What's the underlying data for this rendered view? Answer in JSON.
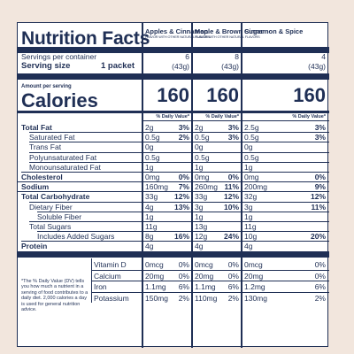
{
  "panel": {
    "title": "Nutrition Facts",
    "servings_label": "Servings per container",
    "serving_size_label": "Serving size",
    "serving_size_value": "1 packet",
    "amount_per_serving": "Amount per serving",
    "calories_label": "Calories",
    "dv_header": "% Daily Value*",
    "footnote": "*The % Daily Value (DV) tells you how much a nutrient in a serving of food contributes to a daily diet. 2,000 calories a day is used for general nutrition advice."
  },
  "columns": [
    {
      "name": "Apples & Cinnamon",
      "sub": "FLAVOR WITH OTHER NATURAL FLAVORS",
      "servings": "6",
      "size": "(43g)",
      "calories": "160",
      "rows": [
        [
          "2g",
          "3%"
        ],
        [
          "0.5g",
          "2%"
        ],
        [
          "0g",
          ""
        ],
        [
          "0.5g",
          ""
        ],
        [
          "1g",
          ""
        ],
        [
          "0mg",
          "0%"
        ],
        [
          "160mg",
          "7%"
        ],
        [
          "33g",
          "12%"
        ],
        [
          "4g",
          "13%"
        ],
        [
          "1g",
          ""
        ],
        [
          "11g",
          ""
        ],
        [
          "8g",
          "16%"
        ],
        [
          "4g",
          ""
        ]
      ],
      "vitamins": [
        [
          "0mcg",
          "0%"
        ],
        [
          "20mg",
          "0%"
        ],
        [
          "1.1mg",
          "6%"
        ],
        [
          "150mg",
          "2%"
        ]
      ]
    },
    {
      "name": "Maple & Brown Sugar",
      "sub": "FLAVOR WITH OTHER NATURAL FLAVORS",
      "servings": "8",
      "size": "(43g)",
      "calories": "160",
      "rows": [
        [
          "2g",
          "3%"
        ],
        [
          "0.5g",
          "3%"
        ],
        [
          "0g",
          ""
        ],
        [
          "0.5g",
          ""
        ],
        [
          "1g",
          ""
        ],
        [
          "0mg",
          "0%"
        ],
        [
          "260mg",
          "11%"
        ],
        [
          "33g",
          "12%"
        ],
        [
          "3g",
          "10%"
        ],
        [
          "1g",
          ""
        ],
        [
          "13g",
          ""
        ],
        [
          "12g",
          "24%"
        ],
        [
          "4g",
          ""
        ]
      ],
      "vitamins": [
        [
          "0mcg",
          "0%"
        ],
        [
          "20mg",
          "0%"
        ],
        [
          "1.1mg",
          "6%"
        ],
        [
          "110mg",
          "2%"
        ]
      ]
    },
    {
      "name": "Cinnamon & Spice",
      "sub": "",
      "servings": "4",
      "size": "(43g)",
      "calories": "160",
      "rows": [
        [
          "2.5g",
          "3%"
        ],
        [
          "0.5g",
          "3%"
        ],
        [
          "0g",
          ""
        ],
        [
          "0.5g",
          ""
        ],
        [
          "1g",
          ""
        ],
        [
          "0mg",
          "0%"
        ],
        [
          "200mg",
          "9%"
        ],
        [
          "32g",
          "12%"
        ],
        [
          "3g",
          "11%"
        ],
        [
          "1g",
          ""
        ],
        [
          "11g",
          ""
        ],
        [
          "10g",
          "20%"
        ],
        [
          "4g",
          ""
        ]
      ],
      "vitamins": [
        [
          "0mcg",
          "0%"
        ],
        [
          "20mg",
          "0%"
        ],
        [
          "1.2mg",
          "6%"
        ],
        [
          "130mg",
          "2%"
        ]
      ]
    }
  ],
  "nutrients": [
    {
      "label": "Total Fat",
      "bold": true,
      "indent": 0
    },
    {
      "label": "Saturated Fat",
      "bold": false,
      "indent": 1
    },
    {
      "label": "Trans Fat",
      "bold": false,
      "indent": 1
    },
    {
      "label": "Polyunsaturated Fat",
      "bold": false,
      "indent": 1
    },
    {
      "label": "Monounsaturated Fat",
      "bold": false,
      "indent": 1
    },
    {
      "label": "Cholesterol",
      "bold": true,
      "indent": 0
    },
    {
      "label": "Sodium",
      "bold": true,
      "indent": 0
    },
    {
      "label": "Total Carbohydrate",
      "bold": true,
      "indent": 0
    },
    {
      "label": "Dietary Fiber",
      "bold": false,
      "indent": 1
    },
    {
      "label": "Soluble Fiber",
      "bold": false,
      "indent": 2
    },
    {
      "label": "Total Sugars",
      "bold": false,
      "indent": 1
    },
    {
      "label": "Includes Added Sugars",
      "bold": false,
      "indent": 2
    },
    {
      "label": "Protein",
      "bold": true,
      "indent": 0
    }
  ],
  "vitamin_labels": [
    "Vitamin D",
    "Calcium",
    "Iron",
    "Potassium"
  ]
}
